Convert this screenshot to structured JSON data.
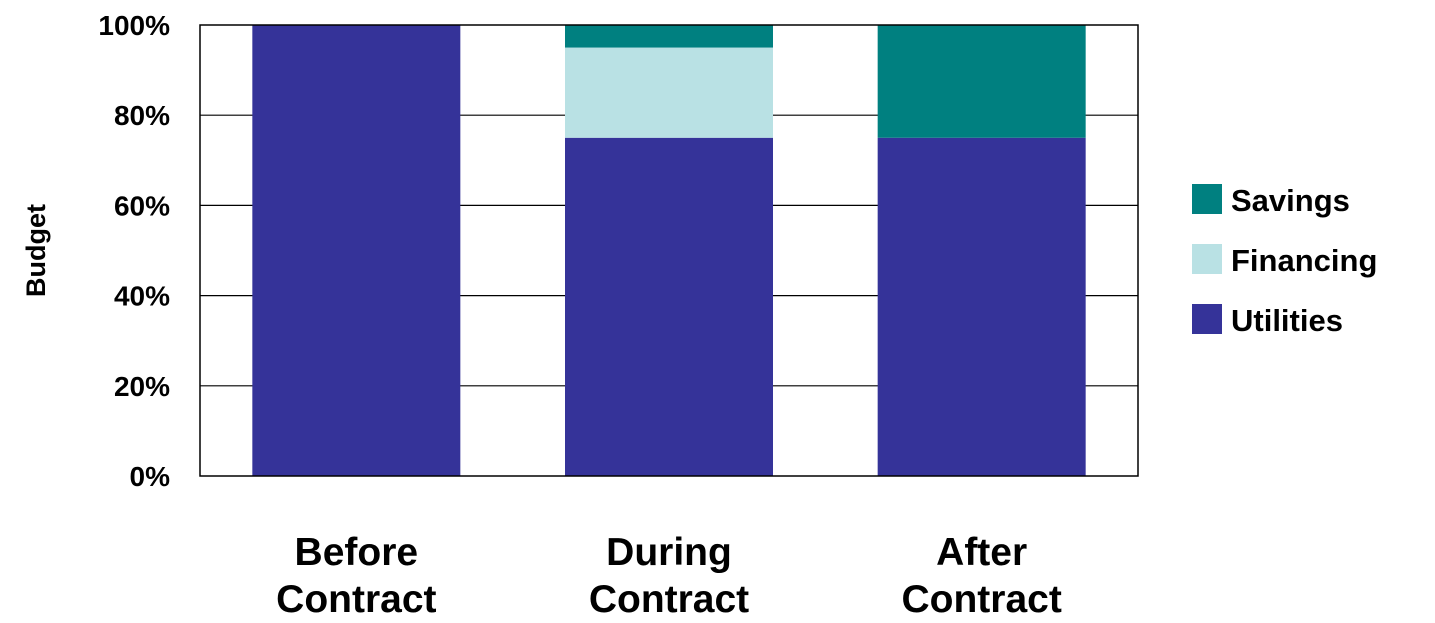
{
  "chart_data": {
    "type": "bar",
    "stacked": true,
    "percent_stacked": true,
    "title": "",
    "xlabel": "",
    "ylabel": "Budget",
    "ylim": [
      0,
      100
    ],
    "yticks": [
      "0%",
      "20%",
      "40%",
      "60%",
      "80%",
      "100%"
    ],
    "categories": [
      [
        "Before",
        "Contract"
      ],
      [
        "During",
        "Contract"
      ],
      [
        "After",
        "Contract"
      ]
    ],
    "series": [
      {
        "name": "Utilities",
        "color": "#353399",
        "values": [
          100,
          75,
          75
        ]
      },
      {
        "name": "Financing",
        "color": "#b9e1e4",
        "values": [
          0,
          20,
          0
        ]
      },
      {
        "name": "Savings",
        "color": "#008080",
        "values": [
          0,
          5,
          25
        ]
      }
    ],
    "grid": true,
    "legend_position": "right",
    "legend_order": [
      "Savings",
      "Financing",
      "Utilities"
    ]
  }
}
